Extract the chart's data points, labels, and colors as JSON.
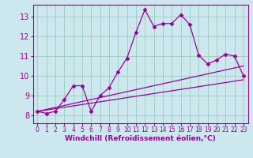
{
  "xlabel": "Windchill (Refroidissement éolien,°C)",
  "background_color": "#cce8ee",
  "line_color": "#990099",
  "grid_color": "#99ccbb",
  "xlim": [
    -0.5,
    23.5
  ],
  "ylim": [
    7.6,
    13.6
  ],
  "xticks": [
    0,
    1,
    2,
    3,
    4,
    5,
    6,
    7,
    8,
    9,
    10,
    11,
    12,
    13,
    14,
    15,
    16,
    17,
    18,
    19,
    20,
    21,
    22,
    23
  ],
  "yticks": [
    8,
    9,
    10,
    11,
    12,
    13
  ],
  "main_x": [
    0,
    1,
    2,
    3,
    4,
    5,
    6,
    7,
    8,
    9,
    10,
    11,
    12,
    13,
    14,
    15,
    16,
    17,
    18,
    19,
    20,
    21,
    22,
    23
  ],
  "main_y": [
    8.2,
    8.1,
    8.2,
    8.8,
    9.5,
    9.5,
    8.2,
    9.0,
    9.4,
    10.2,
    10.9,
    12.2,
    13.35,
    12.5,
    12.65,
    12.65,
    13.1,
    12.6,
    11.05,
    10.6,
    10.8,
    11.1,
    11.0,
    10.0
  ],
  "line1_x": [
    0,
    23
  ],
  "line1_y": [
    8.2,
    10.5
  ],
  "line2_x": [
    0,
    23
  ],
  "line2_y": [
    8.2,
    9.8
  ]
}
